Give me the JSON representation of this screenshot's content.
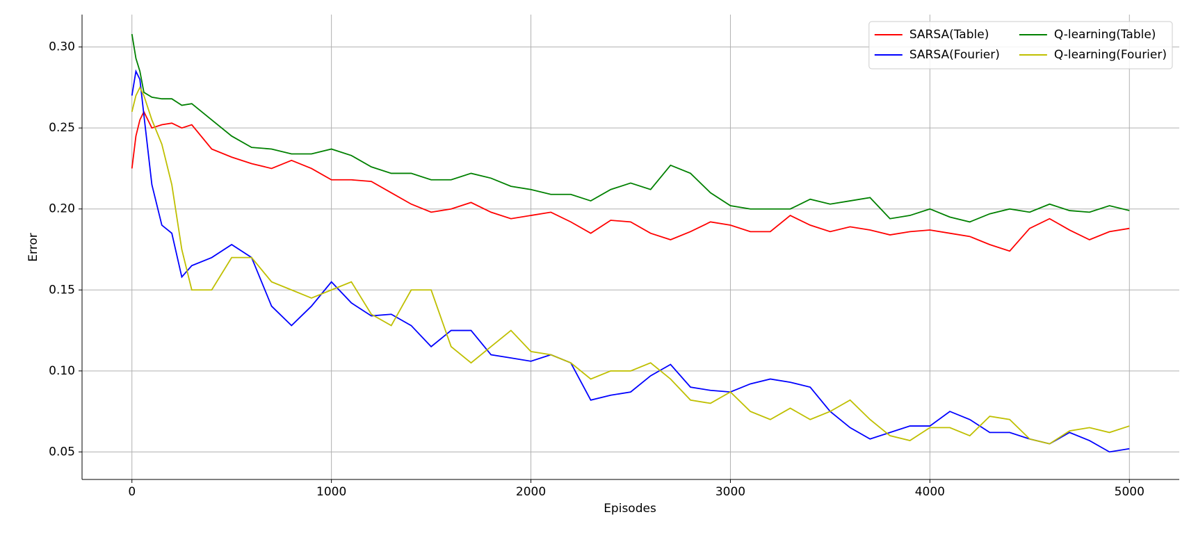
{
  "chart_data": {
    "type": "line",
    "xlabel": "Episodes",
    "ylabel": "Error",
    "x": [
      0,
      20,
      40,
      60,
      100,
      150,
      200,
      250,
      300,
      400,
      500,
      600,
      700,
      800,
      900,
      1000,
      1100,
      1200,
      1300,
      1400,
      1500,
      1600,
      1700,
      1800,
      1900,
      2000,
      2100,
      2200,
      2300,
      2400,
      2500,
      2600,
      2700,
      2800,
      2900,
      3000,
      3100,
      3200,
      3300,
      3400,
      3500,
      3600,
      3700,
      3800,
      3900,
      4000,
      4100,
      4200,
      4300,
      4400,
      4500,
      4600,
      4700,
      4800,
      4900,
      5000
    ],
    "series": [
      {
        "name": "SARSA(Table)",
        "color": "#ff0000",
        "values": [
          0.225,
          0.245,
          0.255,
          0.26,
          0.25,
          0.252,
          0.253,
          0.25,
          0.252,
          0.237,
          0.232,
          0.228,
          0.225,
          0.23,
          0.225,
          0.218,
          0.218,
          0.217,
          0.21,
          0.203,
          0.198,
          0.2,
          0.204,
          0.198,
          0.194,
          0.196,
          0.198,
          0.192,
          0.185,
          0.193,
          0.192,
          0.185,
          0.181,
          0.186,
          0.192,
          0.19,
          0.186,
          0.186,
          0.196,
          0.19,
          0.186,
          0.189,
          0.187,
          0.184,
          0.186,
          0.187,
          0.185,
          0.183,
          0.178,
          0.174,
          0.188,
          0.194,
          0.187,
          0.181,
          0.186,
          0.188
        ]
      },
      {
        "name": "SARSA(Fourier)",
        "color": "#0000ff",
        "values": [
          0.27,
          0.285,
          0.28,
          0.258,
          0.215,
          0.19,
          0.185,
          0.158,
          0.165,
          0.17,
          0.178,
          0.17,
          0.14,
          0.128,
          0.14,
          0.155,
          0.142,
          0.134,
          0.135,
          0.128,
          0.115,
          0.125,
          0.125,
          0.11,
          0.108,
          0.106,
          0.11,
          0.105,
          0.082,
          0.085,
          0.087,
          0.097,
          0.104,
          0.09,
          0.088,
          0.087,
          0.092,
          0.095,
          0.093,
          0.09,
          0.075,
          0.065,
          0.058,
          0.062,
          0.066,
          0.066,
          0.075,
          0.07,
          0.062,
          0.062,
          0.058,
          0.055,
          0.062,
          0.057,
          0.05,
          0.052
        ]
      },
      {
        "name": "Q-learning(Table)",
        "color": "#008000",
        "values": [
          0.308,
          0.293,
          0.285,
          0.272,
          0.269,
          0.268,
          0.268,
          0.264,
          0.265,
          0.255,
          0.245,
          0.238,
          0.237,
          0.234,
          0.234,
          0.237,
          0.233,
          0.226,
          0.222,
          0.222,
          0.218,
          0.218,
          0.222,
          0.219,
          0.214,
          0.212,
          0.209,
          0.209,
          0.205,
          0.212,
          0.216,
          0.212,
          0.227,
          0.222,
          0.21,
          0.202,
          0.2,
          0.2,
          0.2,
          0.206,
          0.203,
          0.205,
          0.207,
          0.194,
          0.196,
          0.2,
          0.195,
          0.192,
          0.197,
          0.2,
          0.198,
          0.203,
          0.199,
          0.198,
          0.202,
          0.199
        ]
      },
      {
        "name": "Q-learning(Fourier)",
        "color": "#bfbf00",
        "values": [
          0.26,
          0.27,
          0.275,
          0.27,
          0.255,
          0.24,
          0.215,
          0.175,
          0.15,
          0.15,
          0.17,
          0.17,
          0.155,
          0.15,
          0.145,
          0.15,
          0.155,
          0.135,
          0.128,
          0.15,
          0.15,
          0.115,
          0.105,
          0.115,
          0.125,
          0.112,
          0.11,
          0.105,
          0.095,
          0.1,
          0.1,
          0.105,
          0.095,
          0.082,
          0.08,
          0.087,
          0.075,
          0.07,
          0.077,
          0.07,
          0.075,
          0.082,
          0.07,
          0.06,
          0.057,
          0.065,
          0.065,
          0.06,
          0.072,
          0.07,
          0.058,
          0.055,
          0.063,
          0.065,
          0.062,
          0.066
        ]
      }
    ],
    "xlim": [
      -250,
      5250
    ],
    "ylim": [
      0.033,
      0.32
    ],
    "xticks": [
      0,
      1000,
      2000,
      3000,
      4000,
      5000
    ],
    "yticks": [
      0.05,
      {
        "value": 0.1,
        "label": "0.10"
      },
      0.15,
      {
        "value": 0.2,
        "label": "0.20"
      },
      0.25,
      {
        "value": 0.3,
        "label": "0.30"
      }
    ],
    "grid": true,
    "legend_loc": "upper right",
    "legend_ncol": 2
  }
}
